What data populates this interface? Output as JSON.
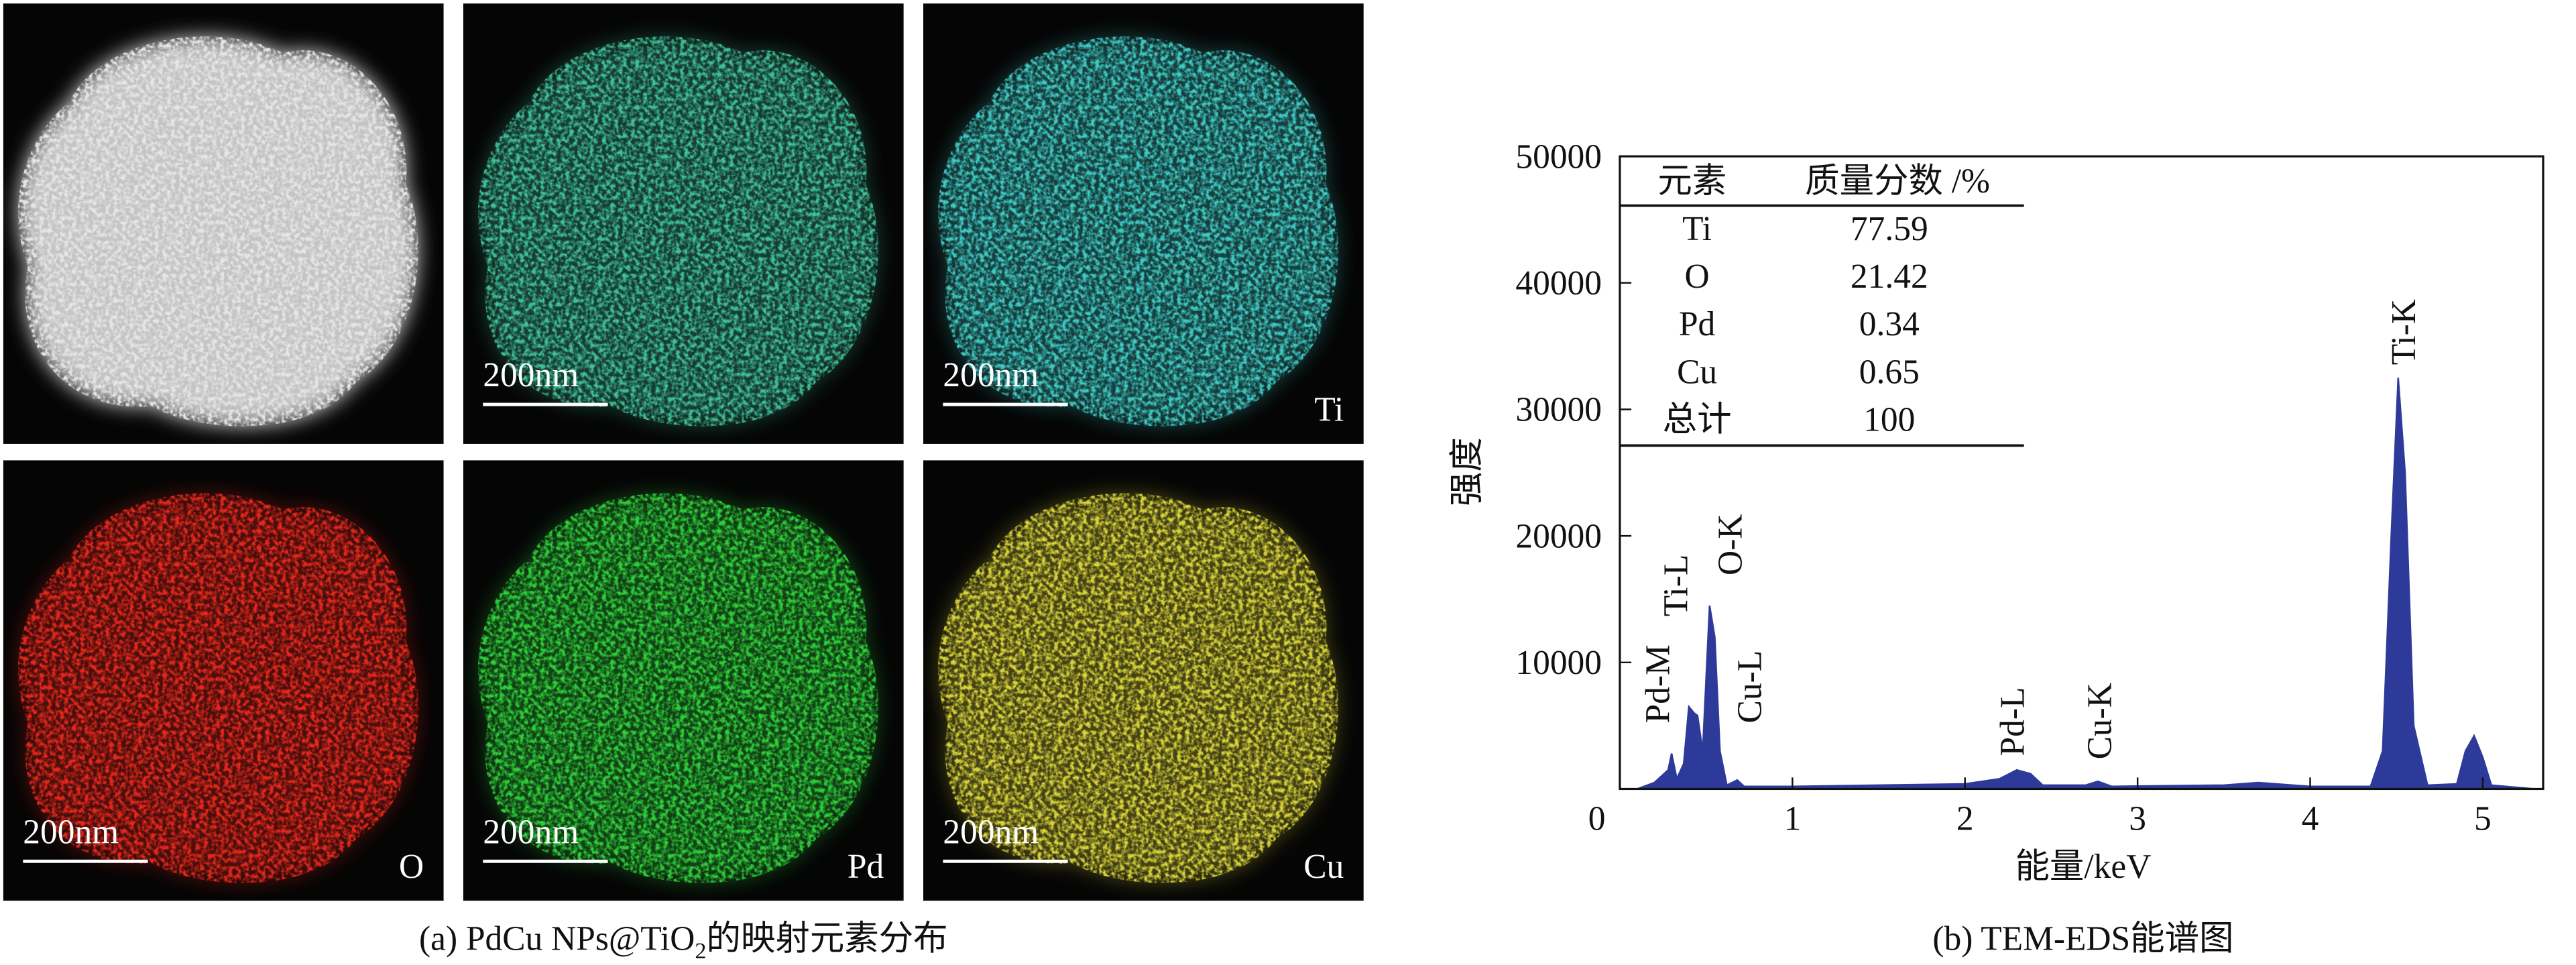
{
  "panels": [
    {
      "color": "#e6e6e6"
    },
    {
      "color": "#3fbf98",
      "scale_bar": "200nm"
    },
    {
      "color": "#3fc9c4",
      "scale_bar": "200nm",
      "element": "Ti"
    },
    {
      "color": "#e8281c",
      "scale_bar": "200nm",
      "element": "O"
    },
    {
      "color": "#2fcf3a",
      "scale_bar": "200nm",
      "element": "Pd"
    },
    {
      "color": "#d8d23a",
      "scale_bar": "200nm",
      "element": "Cu"
    }
  ],
  "caption_a": {
    "prefix": "(a) PdCu NPs@TiO",
    "sub": "2",
    "suffix": "的映射元素分布"
  },
  "caption_b": "(b) TEM-EDS能谱图",
  "table": {
    "header": [
      "元素",
      "质量分数 /%"
    ],
    "rows": [
      [
        "Ti",
        "77.59"
      ],
      [
        "O",
        "21.42"
      ],
      [
        "Pd",
        "0.34"
      ],
      [
        "Cu",
        "0.65"
      ],
      [
        "总计",
        "100"
      ]
    ]
  },
  "chart_data": {
    "type": "area",
    "color": "#2e3a9a",
    "x_label": "能量/keV",
    "y_label": "强度",
    "xlim": [
      0,
      5.35
    ],
    "ylim": [
      0,
      50000
    ],
    "xticks": [
      0,
      1,
      2,
      3,
      4,
      5
    ],
    "yticks": [
      10000,
      20000,
      30000,
      40000,
      50000
    ],
    "x": [
      0.1,
      0.2,
      0.28,
      0.3,
      0.33,
      0.37,
      0.4,
      0.43,
      0.45,
      0.48,
      0.52,
      0.55,
      0.58,
      0.62,
      0.68,
      0.72,
      1.0,
      1.5,
      2.0,
      2.2,
      2.3,
      2.38,
      2.45,
      2.7,
      2.77,
      2.85,
      3.5,
      3.7,
      4.0,
      4.35,
      4.42,
      4.47,
      4.51,
      4.55,
      4.6,
      4.68,
      4.85,
      4.9,
      4.95,
      5.0,
      5.05,
      5.3
    ],
    "values": [
      0,
      500,
      1500,
      2800,
      800,
      2000,
      6500,
      6000,
      5800,
      3000,
      14500,
      12000,
      3000,
      300,
      700,
      200,
      200,
      300,
      400,
      800,
      1500,
      1200,
      300,
      300,
      600,
      200,
      300,
      500,
      200,
      200,
      3000,
      20000,
      32500,
      25000,
      5000,
      300,
      400,
      3000,
      4200,
      2500,
      300,
      0
    ],
    "annotations": [
      "Pd-M",
      "Ti-L",
      "O-K",
      "Cu-L",
      "Pd-L",
      "Cu-K",
      "Ti-K"
    ]
  }
}
